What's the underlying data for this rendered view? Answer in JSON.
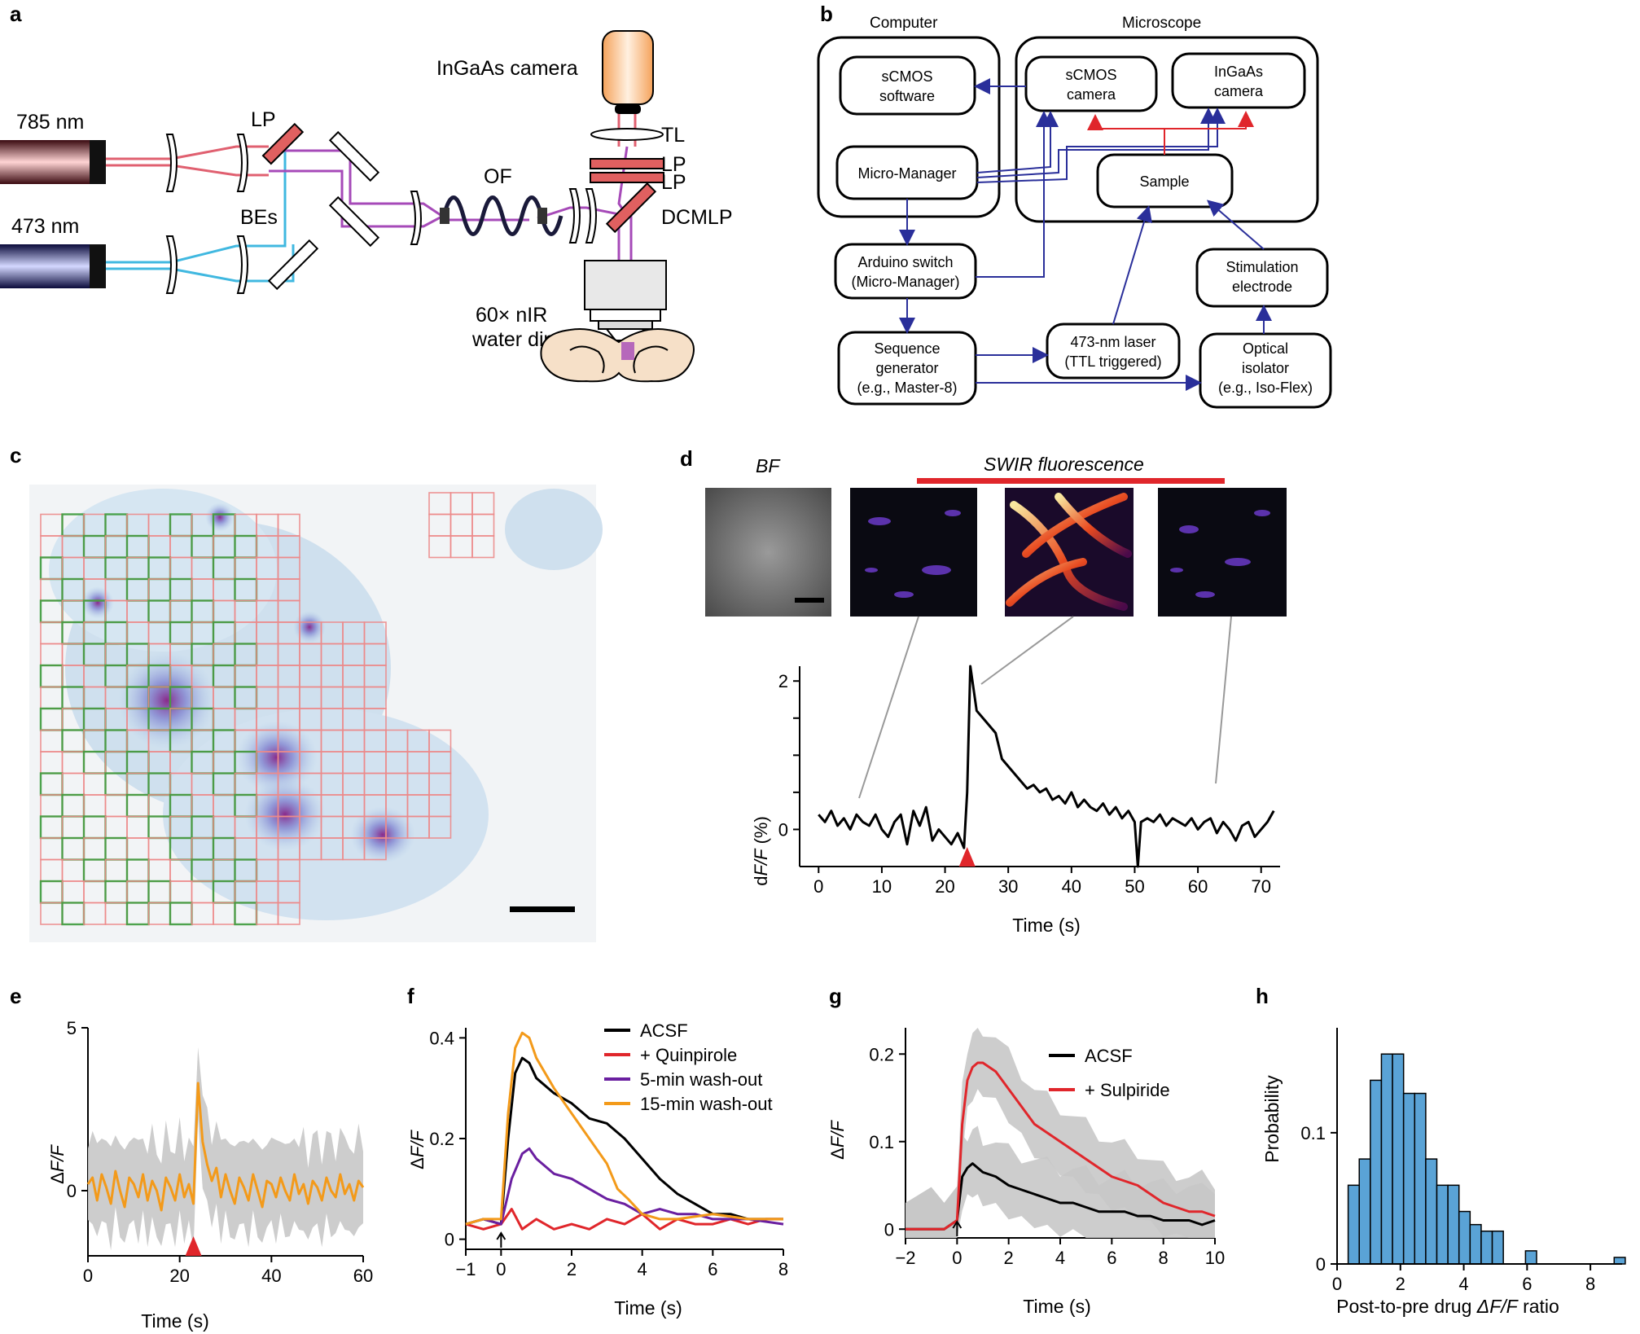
{
  "panels": {
    "a": {
      "letter": "a",
      "labels": {
        "laser785": "785 nm",
        "laser473": "473 nm",
        "lp": "LP",
        "bes": "BEs",
        "of": "OF",
        "camera": "InGaAs camera",
        "tl": "TL",
        "lp2": "LP",
        "lp3": "LP",
        "dcmlp": "DCMLP",
        "objective1": "60× nIR",
        "objective2": "water dipping"
      }
    },
    "b": {
      "letter": "b",
      "computer": "Computer",
      "microscope": "Microscope",
      "boxes": {
        "scmos_sw_1": "sCMOS",
        "scmos_sw_2": "software",
        "mm": "Micro-Manager",
        "scmos_cam_1": "sCMOS",
        "scmos_cam_2": "camera",
        "ingaas_1": "InGaAs",
        "ingaas_2": "camera",
        "sample": "Sample",
        "arduino_1": "Arduino switch",
        "arduino_2": "(Micro-Manager)",
        "seq_1": "Sequence",
        "seq_2": "generator",
        "seq_3": "(e.g., Master-8)",
        "laser_1": "473-nm laser",
        "laser_2": "(TTL triggered)",
        "stim_1": "Stimulation",
        "stim_2": "electrode",
        "iso_1": "Optical",
        "iso_2": "isolator",
        "iso_3": "(e.g., Iso-Flex)"
      }
    },
    "c": {
      "letter": "c"
    },
    "d": {
      "letter": "d",
      "bf": "BF",
      "swir": "SWIR fluorescence",
      "ylabel_d": "d",
      "ylabel_ff": "F/F",
      "ylabel_unit": " (%)",
      "xlabel": "Time (s)"
    },
    "e": {
      "letter": "e",
      "ylabel_delta": "Δ",
      "ylabel_ff": "F/F",
      "xlabel": "Time (s)"
    },
    "f": {
      "letter": "f",
      "ylabel_delta": "Δ",
      "ylabel_ff": "F/F",
      "xlabel": "Time (s)"
    },
    "g": {
      "letter": "g",
      "ylabel_delta": "Δ",
      "ylabel_ff": "F/F",
      "xlabel": "Time (s)"
    },
    "h": {
      "letter": "h",
      "ylabel": "Probability",
      "xlabel_pre": "Post-to-pre drug ",
      "xlabel_it": "ΔF/F",
      "xlabel_post": " ratio"
    }
  },
  "colors": {
    "black": "#000000",
    "red": "#e0262b",
    "purple": "#6a1fa0",
    "orange": "#f39a1a",
    "gray": "#c8c8c8",
    "blue": "#5aa3d6",
    "navy": "#2a2f9a",
    "laserRed": "#e06070",
    "laserBlue": "#40b8e0",
    "magenta": "#a64ab8"
  },
  "chart_data": [
    {
      "panel": "d",
      "type": "line",
      "xlabel": "Time (s)",
      "ylabel": "dF/F (%)",
      "xlim": [
        -3,
        73
      ],
      "ylim": [
        -0.5,
        2.2
      ],
      "xticks": [
        0,
        10,
        20,
        30,
        40,
        50,
        60,
        70
      ],
      "yticks": [
        0,
        1,
        2
      ],
      "ytick_labels": [
        "0",
        "",
        "2"
      ],
      "stimulus_marker_x": 23.5,
      "series": [
        {
          "color": "#000000",
          "x": [
            0,
            1,
            2,
            3,
            4,
            5,
            6,
            7,
            8,
            9,
            10,
            11,
            12,
            13,
            14,
            15,
            16,
            17,
            18,
            19,
            20,
            21,
            22,
            23,
            23.5,
            24,
            24.5,
            25,
            26,
            27,
            28,
            29,
            30,
            31,
            32,
            33,
            34,
            35,
            36,
            37,
            38,
            39,
            40,
            41,
            42,
            43,
            44,
            45,
            46,
            47,
            48,
            49,
            50,
            50.5,
            51,
            52,
            53,
            54,
            55,
            56,
            57,
            58,
            59,
            60,
            61,
            62,
            63,
            64,
            65,
            66,
            67,
            68,
            69,
            70,
            71,
            72
          ],
          "y": [
            0.2,
            0.1,
            0.25,
            0.05,
            0.15,
            0.0,
            0.2,
            0.1,
            0.05,
            0.2,
            0.0,
            -0.1,
            0.1,
            0.2,
            -0.2,
            0.25,
            0.05,
            0.3,
            -0.15,
            0.0,
            -0.1,
            -0.2,
            -0.05,
            -0.25,
            0.5,
            2.2,
            1.9,
            1.6,
            1.5,
            1.4,
            1.3,
            0.95,
            0.85,
            0.75,
            0.65,
            0.55,
            0.6,
            0.5,
            0.55,
            0.4,
            0.45,
            0.35,
            0.5,
            0.3,
            0.4,
            0.3,
            0.25,
            0.35,
            0.2,
            0.3,
            0.15,
            0.25,
            0.1,
            -0.5,
            0.1,
            0.15,
            0.1,
            0.2,
            0.05,
            0.15,
            0.1,
            0.05,
            0.15,
            0.0,
            0.1,
            0.15,
            -0.05,
            0.1,
            0.0,
            -0.15,
            0.05,
            0.1,
            -0.1,
            0.0,
            0.1,
            0.25
          ]
        }
      ]
    },
    {
      "panel": "e",
      "type": "line",
      "xlabel": "Time (s)",
      "ylabel": "ΔF/F",
      "xlim": [
        0,
        60
      ],
      "ylim": [
        -2,
        5
      ],
      "xticks": [
        0,
        20,
        40,
        60
      ],
      "yticks": [
        0,
        5
      ],
      "stimulus_marker_x": 23,
      "series": [
        {
          "name": "mean",
          "color": "#f39a1a",
          "x": [
            0,
            1,
            2,
            3,
            4,
            5,
            6,
            7,
            8,
            9,
            10,
            11,
            12,
            13,
            14,
            15,
            16,
            17,
            18,
            19,
            20,
            21,
            22,
            23,
            24,
            25,
            26,
            27,
            28,
            29,
            30,
            31,
            32,
            33,
            34,
            35,
            36,
            37,
            38,
            39,
            40,
            41,
            42,
            43,
            44,
            45,
            46,
            47,
            48,
            49,
            50,
            51,
            52,
            53,
            54,
            55,
            56,
            57,
            58,
            59,
            60
          ],
          "y": [
            0.2,
            0.4,
            -0.3,
            0.5,
            0.1,
            -0.4,
            0.6,
            0.0,
            -0.5,
            0.4,
            0.2,
            -0.2,
            0.5,
            -0.3,
            0.3,
            0.0,
            -0.6,
            0.4,
            0.1,
            -0.3,
            0.5,
            -0.2,
            0.2,
            -0.4,
            3.3,
            1.5,
            0.8,
            0.3,
            0.7,
            -0.2,
            0.5,
            0.0,
            -0.4,
            0.4,
            0.1,
            -0.3,
            0.5,
            0.0,
            -0.5,
            0.3,
            0.2,
            -0.2,
            0.4,
            0.0,
            -0.3,
            0.5,
            -0.1,
            0.2,
            -0.4,
            0.3,
            0.1,
            -0.3,
            0.4,
            0.0,
            -0.2,
            0.5,
            -0.1,
            0.2,
            -0.3,
            0.3,
            0.1
          ]
        }
      ],
      "band_halfwidth": 1.1
    },
    {
      "panel": "f",
      "type": "line",
      "xlabel": "Time (s)",
      "ylabel": "ΔF/F",
      "xlim": [
        -1,
        8
      ],
      "ylim": [
        -0.02,
        0.42
      ],
      "xticks": [
        -1,
        0,
        2,
        4,
        6,
        8
      ],
      "yticks": [
        0,
        0.2,
        0.4
      ],
      "ytick_labels": [
        "0",
        "0.2",
        "0.4"
      ],
      "stimulus_marker_x": 0,
      "legend_position": "top-right",
      "series": [
        {
          "name": "ACSF",
          "color": "#000000",
          "x": [
            -1,
            -0.5,
            0,
            0.2,
            0.4,
            0.6,
            0.8,
            1.0,
            1.5,
            2.0,
            2.5,
            3.0,
            3.5,
            4.0,
            4.5,
            5.0,
            5.5,
            6.0,
            6.5,
            7.0,
            7.5,
            8.0
          ],
          "y": [
            0.03,
            0.04,
            0.03,
            0.2,
            0.33,
            0.36,
            0.35,
            0.32,
            0.29,
            0.27,
            0.24,
            0.23,
            0.2,
            0.16,
            0.12,
            0.09,
            0.07,
            0.05,
            0.05,
            0.04,
            0.04,
            0.04
          ]
        },
        {
          "name": "+ Quinpirole",
          "color": "#e0262b",
          "x": [
            -1,
            -0.5,
            0,
            0.3,
            0.6,
            1.0,
            1.5,
            2.0,
            2.5,
            3.0,
            3.5,
            4.0,
            4.5,
            5.0,
            5.5,
            6.0,
            6.5,
            7.0,
            7.5,
            8.0
          ],
          "y": [
            0.03,
            0.02,
            0.03,
            0.06,
            0.02,
            0.04,
            0.02,
            0.03,
            0.02,
            0.04,
            0.03,
            0.05,
            0.02,
            0.04,
            0.03,
            0.03,
            0.04,
            0.03,
            0.04,
            0.04
          ]
        },
        {
          "name": "5-min wash-out",
          "color": "#6a1fa0",
          "x": [
            -1,
            -0.5,
            0,
            0.3,
            0.6,
            0.8,
            1.0,
            1.5,
            2.0,
            2.5,
            3.0,
            3.5,
            4.0,
            4.5,
            5.0,
            5.5,
            6.0,
            7.0,
            8.0
          ],
          "y": [
            0.03,
            0.04,
            0.03,
            0.12,
            0.17,
            0.18,
            0.16,
            0.13,
            0.12,
            0.1,
            0.08,
            0.07,
            0.05,
            0.06,
            0.05,
            0.05,
            0.04,
            0.04,
            0.03
          ]
        },
        {
          "name": "15-min wash-out",
          "color": "#f39a1a",
          "x": [
            -1,
            -0.5,
            0,
            0.2,
            0.4,
            0.6,
            0.8,
            1.0,
            1.5,
            2.0,
            2.5,
            3.0,
            3.3,
            3.6,
            4.0,
            4.5,
            5.0,
            6.0,
            7.0,
            8.0
          ],
          "y": [
            0.03,
            0.04,
            0.04,
            0.25,
            0.38,
            0.41,
            0.4,
            0.36,
            0.3,
            0.25,
            0.2,
            0.15,
            0.1,
            0.08,
            0.05,
            0.04,
            0.04,
            0.05,
            0.04,
            0.04
          ]
        }
      ]
    },
    {
      "panel": "g",
      "type": "line",
      "xlabel": "Time (s)",
      "ylabel": "ΔF/F",
      "xlim": [
        -2,
        10
      ],
      "ylim": [
        -0.01,
        0.23
      ],
      "xticks": [
        -2,
        0,
        2,
        4,
        6,
        8,
        10
      ],
      "yticks": [
        0,
        0.1,
        0.2
      ],
      "ytick_labels": [
        "0",
        "0.1",
        "0.2"
      ],
      "stimulus_marker_x": 0,
      "legend_position": "top-right",
      "series": [
        {
          "name": "ACSF",
          "color": "#000000",
          "x": [
            -2,
            -1.5,
            -1,
            -0.5,
            0,
            0.2,
            0.4,
            0.6,
            0.8,
            1,
            1.5,
            2,
            2.5,
            3,
            3.5,
            4,
            4.5,
            5,
            5.5,
            6,
            6.5,
            7,
            7.5,
            8,
            8.5,
            9,
            9.5,
            10
          ],
          "y": [
            0.0,
            0.0,
            0.0,
            0.0,
            0.01,
            0.06,
            0.07,
            0.075,
            0.07,
            0.065,
            0.06,
            0.05,
            0.045,
            0.04,
            0.035,
            0.03,
            0.03,
            0.025,
            0.02,
            0.02,
            0.02,
            0.015,
            0.015,
            0.01,
            0.01,
            0.01,
            0.005,
            0.01
          ]
        },
        {
          "name": "+ Sulpiride",
          "color": "#e0262b",
          "x": [
            -2,
            -1.5,
            -1,
            -0.5,
            0,
            0.2,
            0.4,
            0.6,
            0.8,
            1,
            1.5,
            2,
            2.5,
            3,
            3.5,
            4,
            4.5,
            5,
            5.5,
            6,
            6.5,
            7,
            7.5,
            8,
            8.5,
            9,
            9.5,
            10
          ],
          "y": [
            0.0,
            0.0,
            0.0,
            0.0,
            0.01,
            0.12,
            0.17,
            0.185,
            0.19,
            0.19,
            0.18,
            0.16,
            0.14,
            0.12,
            0.11,
            0.1,
            0.09,
            0.08,
            0.07,
            0.06,
            0.055,
            0.05,
            0.04,
            0.03,
            0.025,
            0.02,
            0.02,
            0.015
          ]
        }
      ],
      "band_halfwidth": 0.03
    },
    {
      "panel": "h",
      "type": "bar",
      "xlabel": "Post-to-pre drug ΔF/F ratio",
      "ylabel": "Probability",
      "xlim": [
        0,
        9
      ],
      "ylim": [
        0,
        0.18
      ],
      "xticks": [
        0,
        2,
        4,
        6,
        8
      ],
      "yticks": [
        0,
        0.1
      ],
      "ytick_labels": [
        "0",
        "0.1"
      ],
      "bin_width": 0.35,
      "bin_starts": [
        0.35,
        0.7,
        1.05,
        1.4,
        1.75,
        2.1,
        2.45,
        2.8,
        3.15,
        3.5,
        3.85,
        4.2,
        4.55,
        4.9,
        5.25,
        5.6,
        5.95,
        6.3,
        6.65,
        7.0,
        7.35,
        7.7,
        8.05,
        8.4,
        8.75
      ],
      "values": [
        0.06,
        0.08,
        0.14,
        0.16,
        0.16,
        0.13,
        0.13,
        0.08,
        0.06,
        0.06,
        0.04,
        0.03,
        0.025,
        0.025,
        0.0,
        0.0,
        0.01,
        0.0,
        0.0,
        0.0,
        0.0,
        0.0,
        0.0,
        0.0,
        0.005
      ]
    }
  ]
}
